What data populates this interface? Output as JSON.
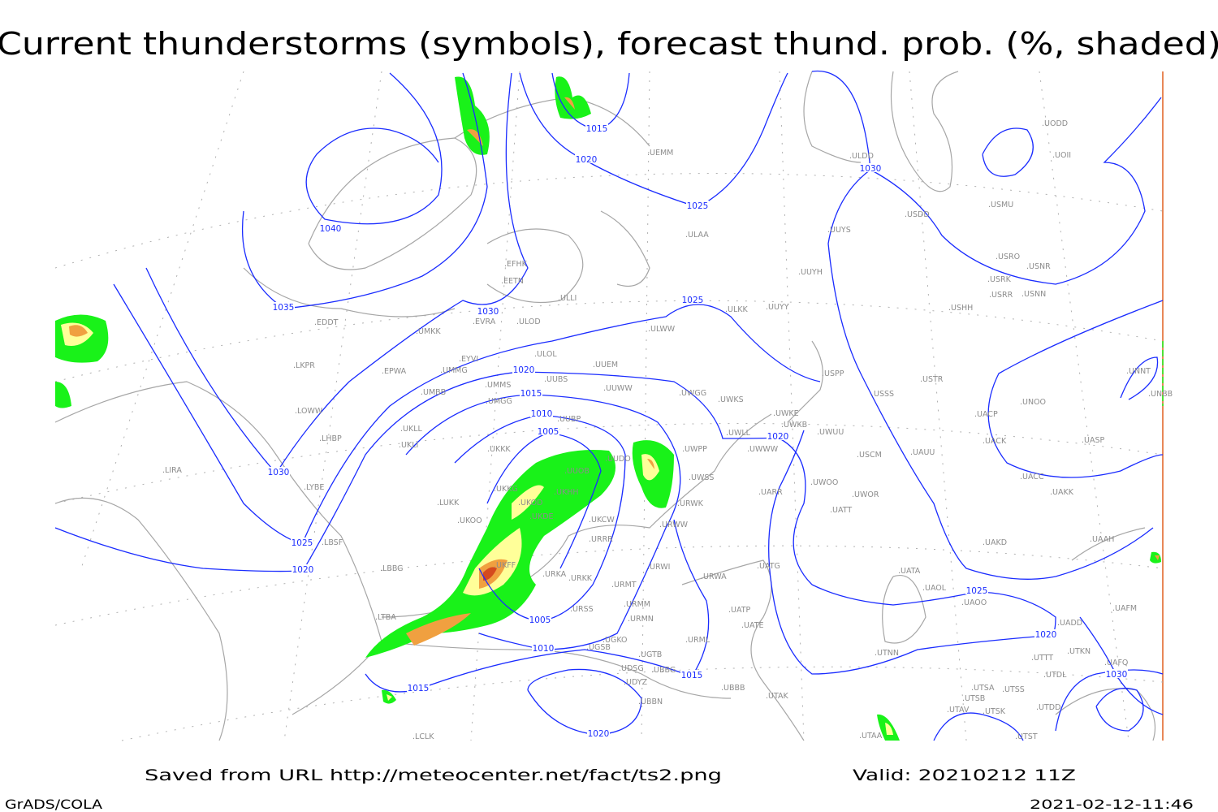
{
  "title": "Current thunderstorms (symbols), forecast thund. prob. (%, shaded)",
  "footer": {
    "source": "Saved from URL http://meteocenter.net/fact/ts2.png",
    "valid": "Valid: 20210212 11Z",
    "software": "GrADS/COLA",
    "timestamp": "2021-02-12-11:46"
  },
  "colors": {
    "isobar": "#1a2cff",
    "coastline": "#a6a6a6",
    "prob_low": "#19f219",
    "prob_mid": "#ffff99",
    "prob_high": "#f0a040",
    "prob_max": "#d44a1e"
  },
  "isobar_labels": [
    "1040",
    "1035",
    "1030",
    "1030",
    "1025",
    "1020",
    "1015",
    "1020",
    "1025",
    "1025",
    "1020",
    "1015",
    "1010",
    "1005",
    "1005",
    "1010",
    "1015",
    "1015",
    "1020",
    "1020",
    "1030",
    "1025",
    "1020",
    "1030"
  ],
  "stations": [
    "ULDD",
    "UODD",
    "UOII",
    "USMU",
    "USDD",
    "UUYS",
    "USRO",
    "USNR",
    "USRK",
    "USRR",
    "USNN",
    "UUYH",
    "USHH",
    "ULKK",
    "UUYY",
    "EFHK",
    "EETN",
    "ULLI",
    "ULAA",
    "UEMM",
    "EDDT",
    "EVRA",
    "ULOD",
    "UMKK",
    "ULWW",
    "ULOL",
    "EYVI",
    "UUEM",
    "LKPR",
    "EPWA",
    "UMMG",
    "UMMS",
    "UUBS",
    "UUWW",
    "UMBB",
    "UMGG",
    "UWGG",
    "UWKS",
    "USPP",
    "USTR",
    "USSS",
    "UNOO",
    "UNNT",
    "UNBB",
    "LOWW",
    "UUBP",
    "UKLL",
    "UKLI",
    "LHBP",
    "UKKK",
    "UUDO",
    "UUOB",
    "UWPP",
    "UWKE",
    "UWKB",
    "UWLL",
    "UWUU",
    "UWWW",
    "USCM",
    "UAUU",
    "UACP",
    "UACK",
    "UASP",
    "UACC",
    "UAKK",
    "LIRA",
    "LYBE",
    "UKKG",
    "UKHH",
    "UKOD",
    "UKDE",
    "LUKK",
    "UKOO",
    "UKCW",
    "UWSS",
    "UWOO",
    "UWOR",
    "UATT",
    "UARR",
    "URWK",
    "URWW",
    "URRR",
    "UKFF",
    "URKA",
    "URKK",
    "URWI",
    "URMT",
    "URWA",
    "UATG",
    "UATA",
    "UAOL",
    "UAOO",
    "UAKD",
    "UAAH",
    "UAFM",
    "UADD",
    "LBSF",
    "LBBG",
    "LTBA",
    "URSS",
    "URMM",
    "URMN",
    "UATE",
    "UATP",
    "URML",
    "UGKO",
    "UGSB",
    "UGTB",
    "UDSG",
    "UBBB",
    "UBBG",
    "UDYZ",
    "UBBN",
    "UTAK",
    "UTNN",
    "UTTT",
    "UTKN",
    "UAFQ",
    "UTDL",
    "UTSA",
    "UTSS",
    "UTSB",
    "UTAV",
    "UTSK",
    "UTDD",
    "UTST",
    "UTAA",
    "LCLK"
  ]
}
